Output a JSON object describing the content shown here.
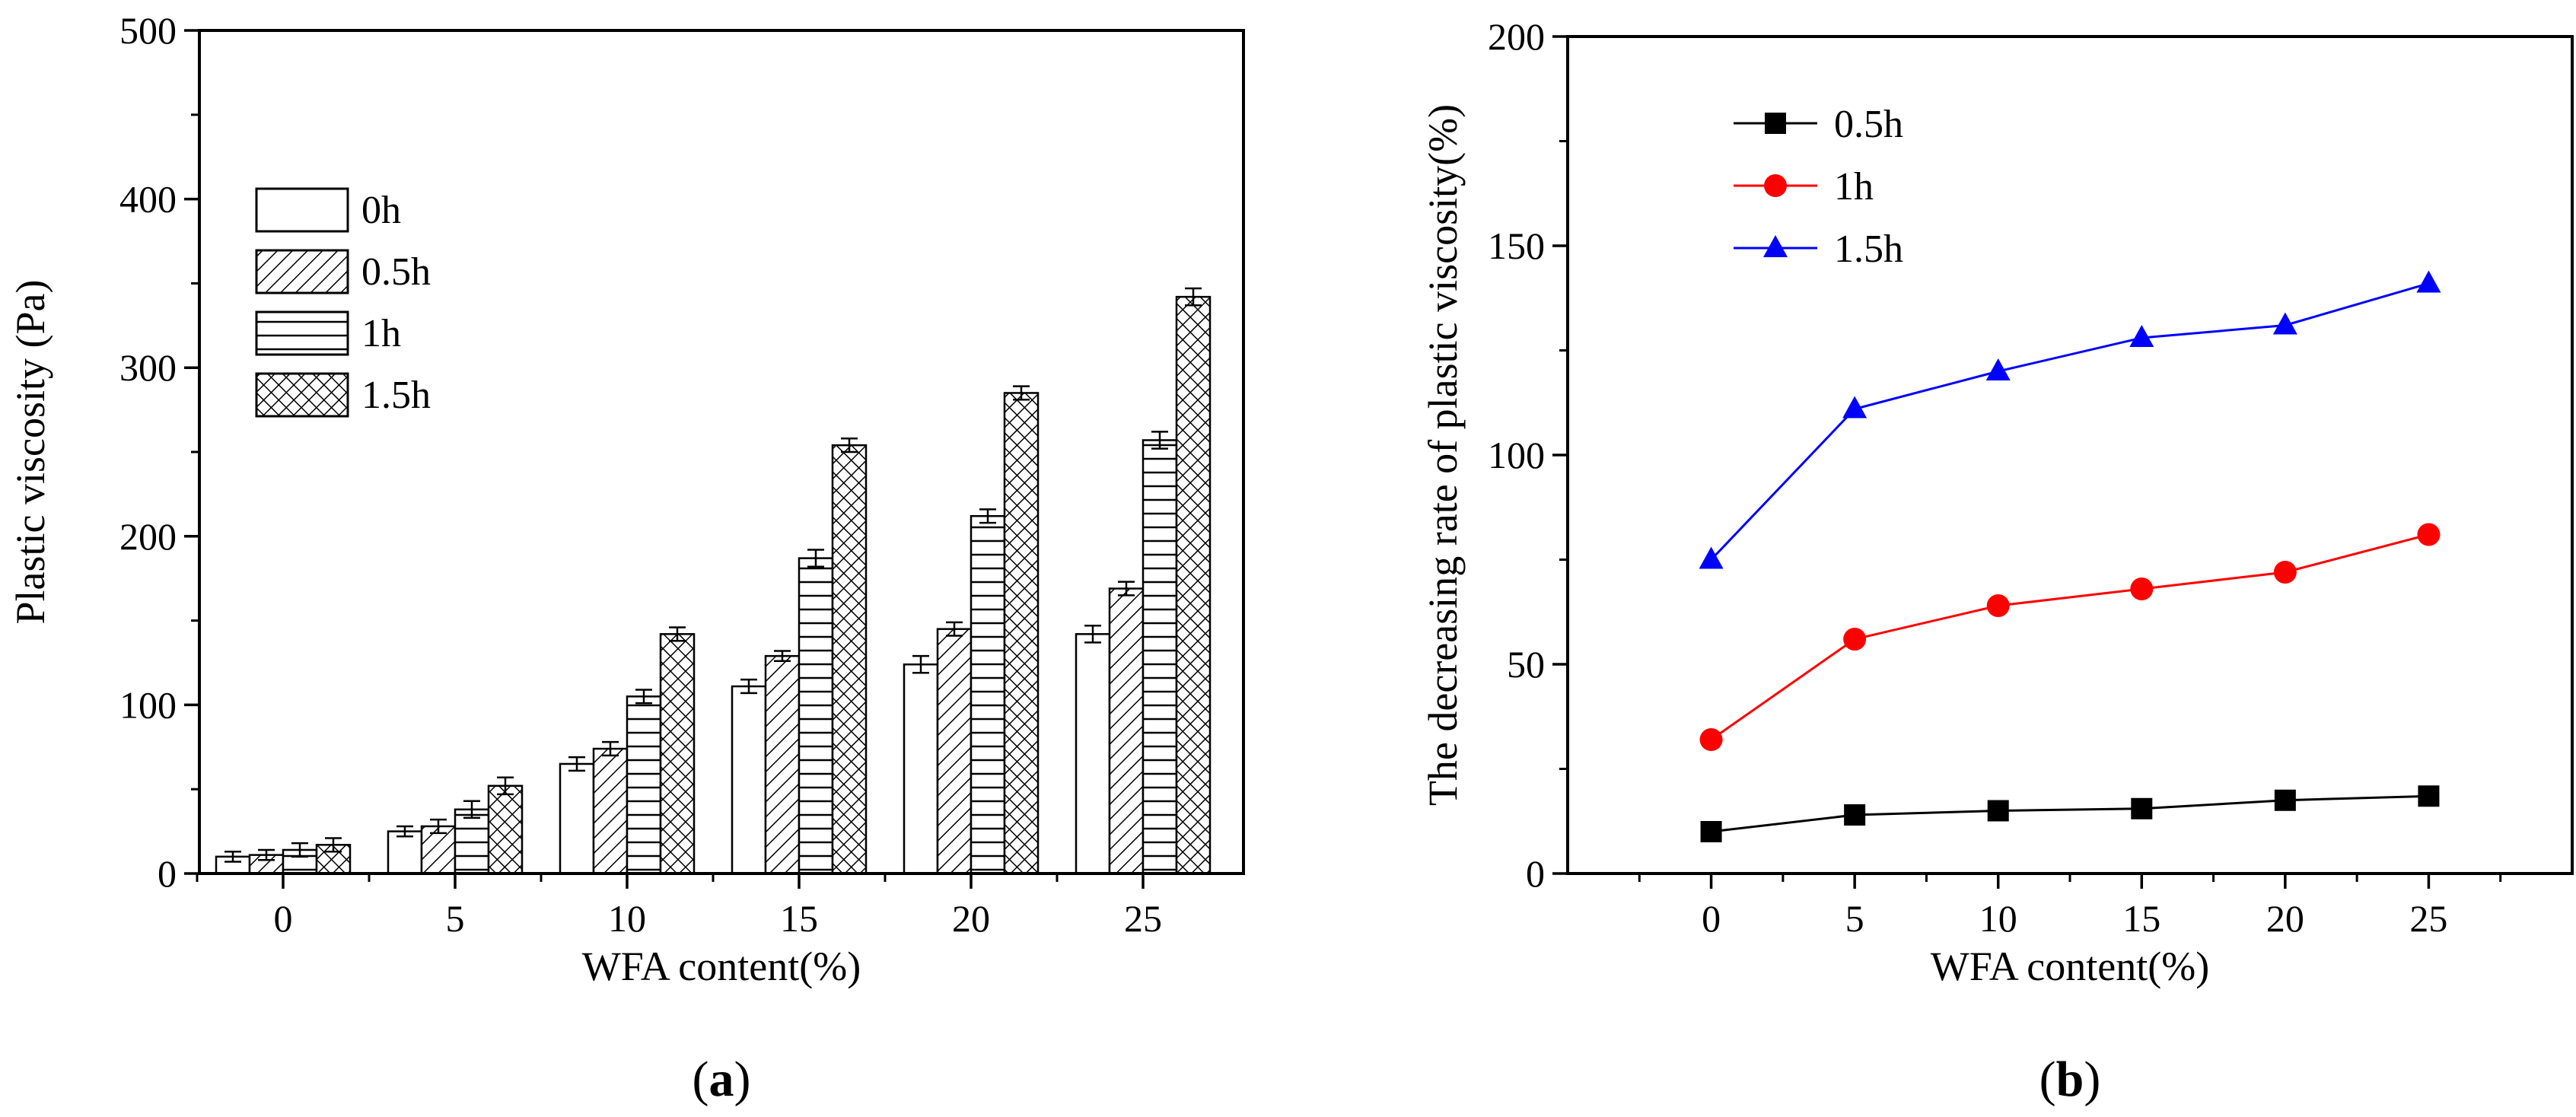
{
  "chart_data": [
    {
      "panel": "a",
      "type": "bar",
      "xlabel": "WFA content(%)",
      "ylabel": "Plastic viscosity (Pa)",
      "ylim": [
        0,
        500
      ],
      "yticks": [
        0,
        100,
        200,
        300,
        400,
        500
      ],
      "categories": [
        "0",
        "5",
        "10",
        "15",
        "20",
        "25"
      ],
      "legend_position": "upper-left",
      "series": [
        {
          "name": "0h",
          "pattern": "none",
          "values": [
            10,
            25,
            65,
            111,
            124,
            142
          ],
          "errors": [
            3,
            3,
            4,
            4,
            5,
            5
          ]
        },
        {
          "name": "0.5h",
          "pattern": "diagonal",
          "values": [
            11,
            28,
            74,
            129,
            145,
            169
          ],
          "errors": [
            3,
            4,
            4,
            3,
            4,
            4
          ]
        },
        {
          "name": "1h",
          "pattern": "horizontal",
          "values": [
            14,
            38,
            105,
            187,
            212,
            257
          ],
          "errors": [
            4,
            5,
            4,
            5,
            4,
            5
          ]
        },
        {
          "name": "1.5h",
          "pattern": "crosshatch",
          "values": [
            17,
            52,
            142,
            254,
            285,
            342
          ],
          "errors": [
            4,
            5,
            4,
            4,
            4,
            5
          ]
        }
      ]
    },
    {
      "panel": "b",
      "type": "line",
      "xlabel": "WFA content(%)",
      "ylabel": "The decreasing rate of plastic viscosity(%)",
      "ylim": [
        0,
        200
      ],
      "xlim": [
        -5,
        30
      ],
      "yticks": [
        0,
        50,
        100,
        150,
        200
      ],
      "x": [
        0,
        5,
        10,
        15,
        20,
        25
      ],
      "legend_position": "upper-left",
      "series": [
        {
          "name": "0.5h",
          "color": "#000000",
          "marker": "square",
          "values": [
            10,
            14,
            15,
            15.5,
            17.5,
            18.5
          ]
        },
        {
          "name": "1h",
          "color": "#ff0000",
          "marker": "circle",
          "values": [
            32,
            56,
            64,
            68,
            72,
            81
          ]
        },
        {
          "name": "1.5h",
          "color": "#0000ff",
          "marker": "triangle",
          "values": [
            75,
            111,
            120,
            128,
            131,
            141
          ]
        }
      ]
    }
  ],
  "labels": {
    "panel_a": {
      "open": "(",
      "letter": "a",
      "close": ")"
    },
    "panel_b": {
      "open": "(",
      "letter": "b",
      "close": ")"
    }
  }
}
